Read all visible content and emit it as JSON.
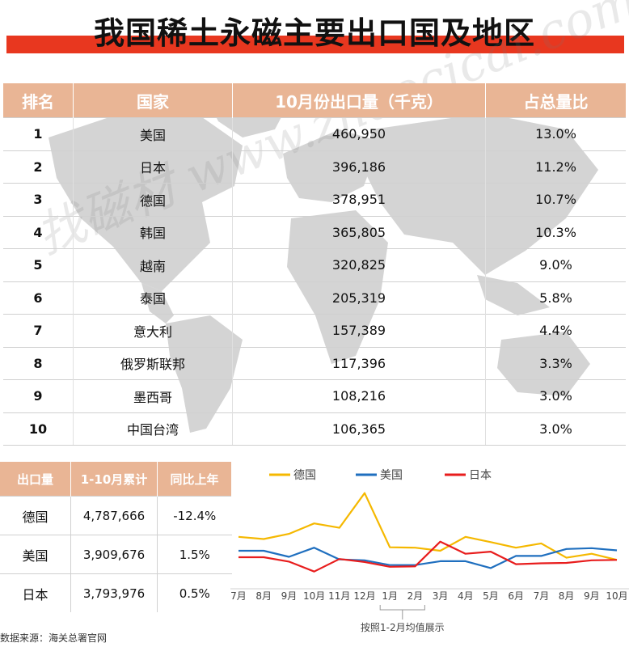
{
  "title": "我国稀土永磁主要出口国及地区",
  "watermark": "找磁材 www.zhaocicai.com",
  "ranking_table": {
    "headers": [
      "排名",
      "国家",
      "10月份出口量（千克）",
      "占总量比"
    ],
    "rows": [
      {
        "rank": "1",
        "country": "美国",
        "volume": "460,950",
        "share": "13.0%"
      },
      {
        "rank": "2",
        "country": "日本",
        "volume": "396,186",
        "share": "11.2%"
      },
      {
        "rank": "3",
        "country": "德国",
        "volume": "378,951",
        "share": "10.7%"
      },
      {
        "rank": "4",
        "country": "韩国",
        "volume": "365,805",
        "share": "10.3%"
      },
      {
        "rank": "5",
        "country": "越南",
        "volume": "320,825",
        "share": "9.0%"
      },
      {
        "rank": "6",
        "country": "泰国",
        "volume": "205,319",
        "share": "5.8%"
      },
      {
        "rank": "7",
        "country": "意大利",
        "volume": "157,389",
        "share": "4.4%"
      },
      {
        "rank": "8",
        "country": "俄罗斯联邦",
        "volume": "117,396",
        "share": "3.3%"
      },
      {
        "rank": "9",
        "country": "墨西哥",
        "volume": "108,216",
        "share": "3.0%"
      },
      {
        "rank": "10",
        "country": "中国台湾",
        "volume": "106,365",
        "share": "3.0%"
      }
    ]
  },
  "cumulative_table": {
    "headers": [
      "出口量",
      "1-10月累计",
      "同比上年"
    ],
    "rows": [
      {
        "country": "德国",
        "total": "4,787,666",
        "yoy": "-12.4%"
      },
      {
        "country": "美国",
        "total": "3,909,676",
        "yoy": "1.5%"
      },
      {
        "country": "日本",
        "total": "3,793,976",
        "yoy": "0.5%"
      }
    ]
  },
  "chart_data": [
    {
      "type": "table",
      "title": "我国稀土永磁主要出口国及地区",
      "columns": [
        "排名",
        "国家",
        "10月份出口量（千克）",
        "占总量比"
      ],
      "rows": [
        [
          "1",
          "美国",
          460950,
          "13.0%"
        ],
        [
          "2",
          "日本",
          396186,
          "11.2%"
        ],
        [
          "3",
          "德国",
          378951,
          "10.7%"
        ],
        [
          "4",
          "韩国",
          365805,
          "10.3%"
        ],
        [
          "5",
          "越南",
          320825,
          "9.0%"
        ],
        [
          "6",
          "泰国",
          205319,
          "5.8%"
        ],
        [
          "7",
          "意大利",
          157389,
          "4.4%"
        ],
        [
          "8",
          "俄罗斯联邦",
          117396,
          "3.3%"
        ],
        [
          "9",
          "墨西哥",
          108216,
          "3.0%"
        ],
        [
          "10",
          "中国台湾",
          106365,
          "3.0%"
        ]
      ]
    },
    {
      "type": "line",
      "x": [
        "7月",
        "8月",
        "9月",
        "10月",
        "11月",
        "12月",
        "1月",
        "2月",
        "3月",
        "4月",
        "5月",
        "6月",
        "7月",
        "8月",
        "9月",
        "10月"
      ],
      "series": [
        {
          "name": "德国",
          "color": "#f5b800",
          "values": [
            505,
            480,
            540,
            660,
            610,
            1010,
            385,
            380,
            345,
            505,
            445,
            380,
            430,
            265,
            310,
            240
          ]
        },
        {
          "name": "美国",
          "color": "#1f6fbf",
          "values": [
            345,
            345,
            275,
            380,
            245,
            235,
            180,
            180,
            225,
            225,
            145,
            285,
            285,
            365,
            375,
            350
          ]
        },
        {
          "name": "日本",
          "color": "#e81d1d",
          "values": [
            270,
            270,
            220,
            105,
            250,
            215,
            160,
            165,
            450,
            310,
            335,
            190,
            200,
            205,
            235,
            240
          ]
        }
      ],
      "ylim": [
        0,
        1100
      ],
      "legend": "top",
      "grid": false,
      "annotation": "按照1-2月均值展示"
    }
  ],
  "source": "数据来源：海关总署官网"
}
